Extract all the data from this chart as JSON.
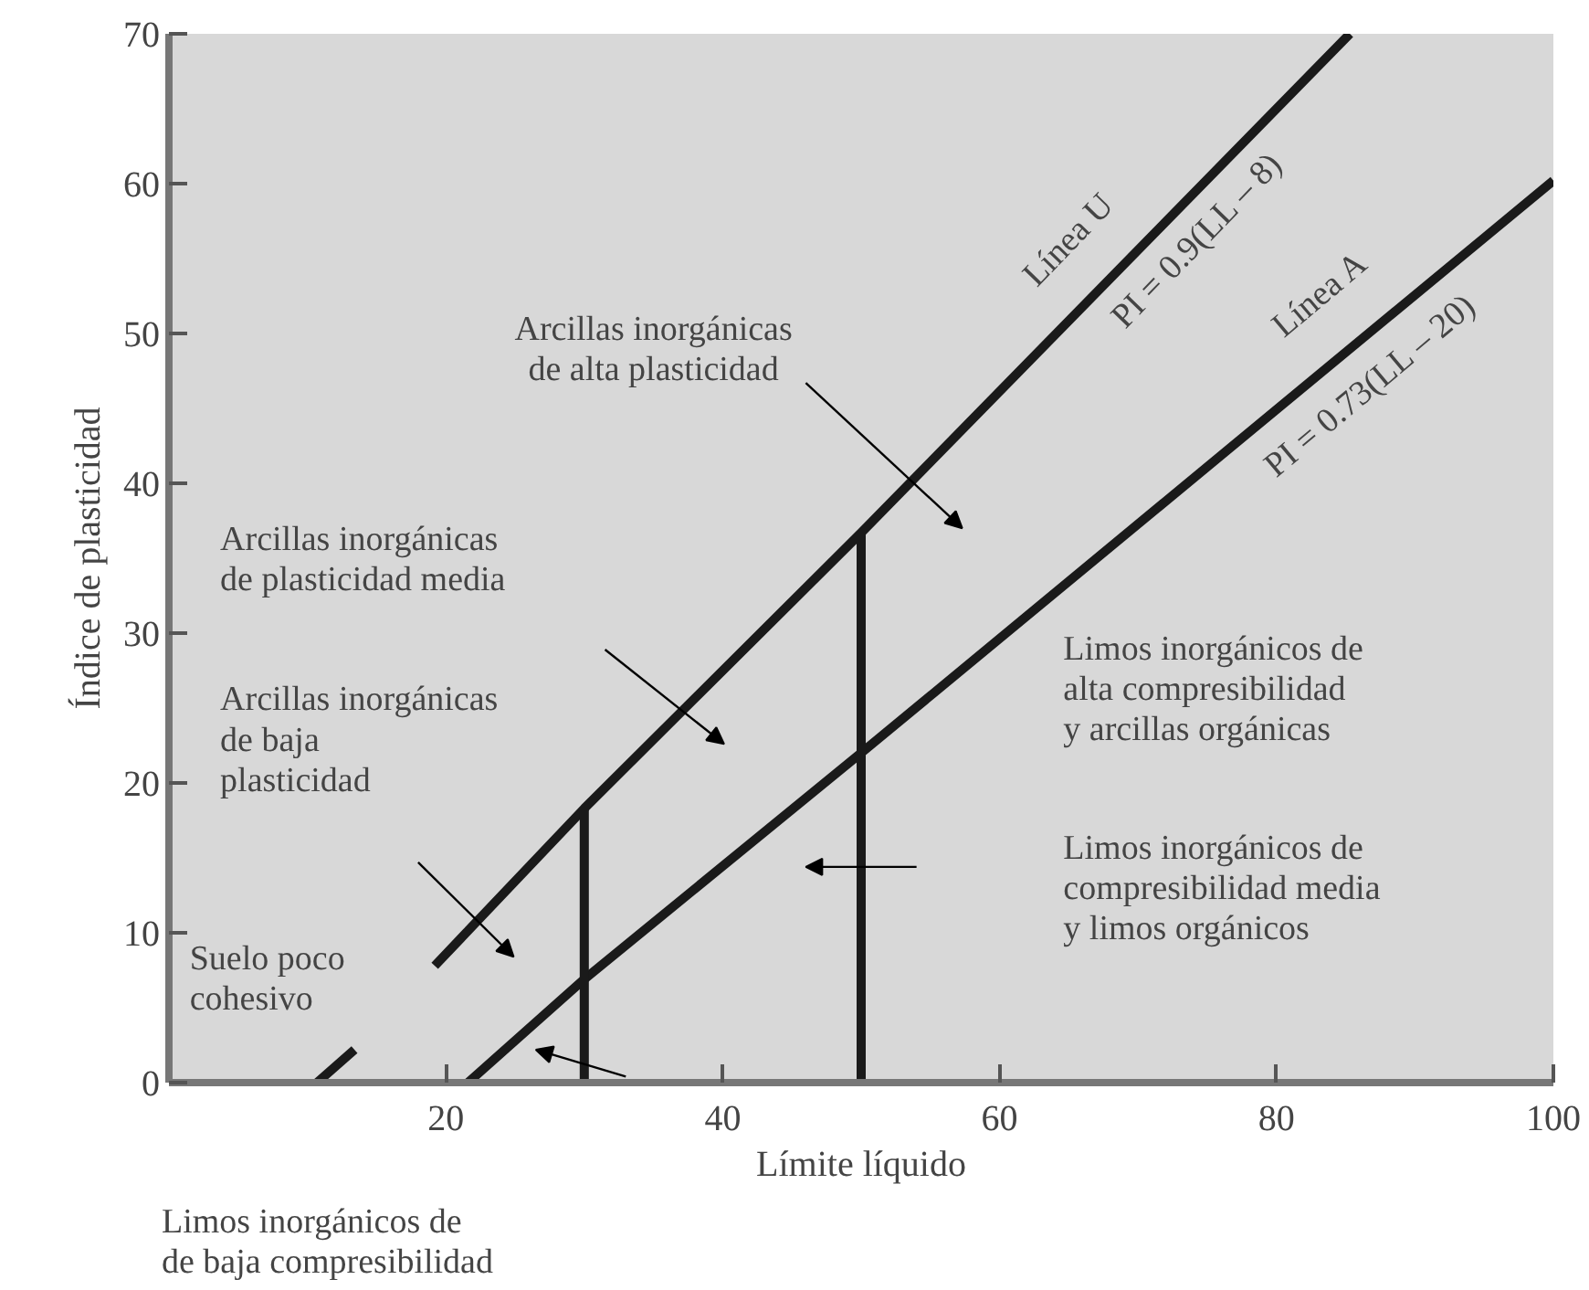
{
  "chart_data": {
    "type": "line",
    "xlabel": "Límite líquido",
    "ylabel": "Índice de plasticidad",
    "xlim": [
      0,
      100
    ],
    "ylim": [
      0,
      70
    ],
    "xticks": [
      20,
      40,
      60,
      80,
      100
    ],
    "yticks": [
      0,
      10,
      20,
      30,
      40,
      50,
      60,
      70
    ],
    "series": [
      {
        "name": "Línea U",
        "color": "#1a1a1a",
        "x": [
          10.7,
          13.4,
          16,
          19.2,
          30,
          50,
          85.3
        ],
        "values": [
          0,
          2.2,
          null,
          7.8,
          18.3,
          36.7,
          70
        ]
      },
      {
        "name": "Línea A",
        "color": "#1a1a1a",
        "x": [
          21.6,
          30,
          50,
          100
        ],
        "values": [
          0,
          6.9,
          22.0,
          60.2
        ]
      },
      {
        "color": "#1a1a1a",
        "x": [
          30,
          30
        ],
        "values": [
          0,
          18.3
        ]
      },
      {
        "color": "#1a1a1a",
        "x": [
          50,
          50
        ],
        "values": [
          0,
          36.7
        ]
      }
    ],
    "annotations": [
      "PI = 0.9(LL – 8)",
      "PI = 0.73(LL – 20)",
      "Arcillas inorgánicas\nde alta plasticidad",
      "Arcillas inorgánicas\nde plasticidad media",
      "Arcillas inorgánicas\nde baja\n plasticidad",
      "Suelo poco\ncohesivo",
      "Limos inorgánicos de\nalta compresibilidad\ny arcillas orgánicas",
      "Limos inorgánicos de\ncompresibilidad media\ny limos orgánicos",
      "Limos inorgánicos de\nde baja compresibilidad"
    ]
  }
}
